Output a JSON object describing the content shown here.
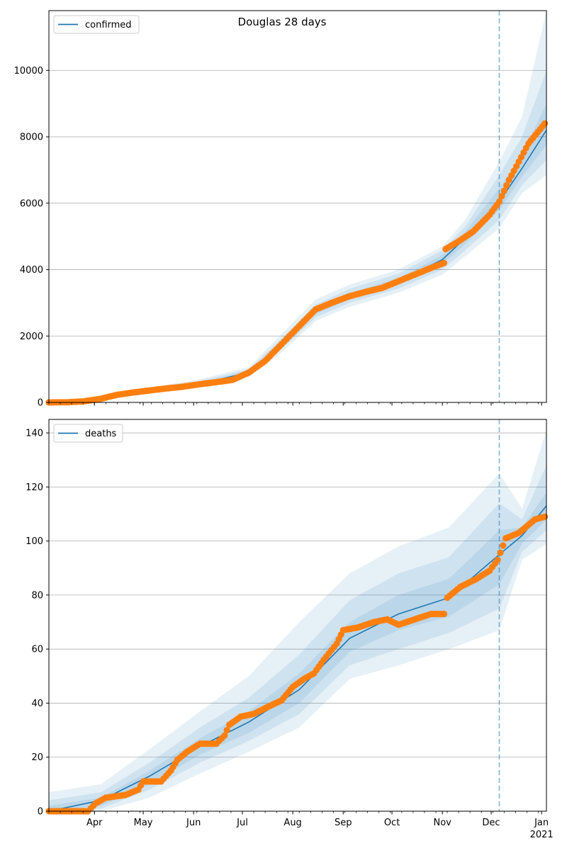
{
  "title": "Douglas 28 days",
  "colors": {
    "model": "#1f77b4",
    "observed": "#ff7f0e",
    "band": "#1f77b4",
    "grid": "#b0b0b0"
  },
  "x_axis": {
    "months": [
      "Apr",
      "May",
      "Jun",
      "Jul",
      "Aug",
      "Sep",
      "Oct",
      "Nov",
      "Dec",
      "Jan"
    ],
    "year_label": "2021",
    "range": [
      "2020-03-04",
      "2021-01-04"
    ],
    "forecast_date": "2020-12-06"
  },
  "chart_data": [
    {
      "type": "line",
      "legend": "confirmed",
      "legend_position": "top-left",
      "grid": "horizontal",
      "ylim": [
        0,
        11800
      ],
      "yticks": [
        0,
        2000,
        4000,
        6000,
        8000,
        10000
      ],
      "observed_points": [
        [
          "2020-03-04",
          0
        ],
        [
          "2020-03-15",
          5
        ],
        [
          "2020-03-25",
          30
        ],
        [
          "2020-04-05",
          110
        ],
        [
          "2020-04-15",
          230
        ],
        [
          "2020-04-25",
          300
        ],
        [
          "2020-05-05",
          360
        ],
        [
          "2020-05-15",
          420
        ],
        [
          "2020-05-25",
          470
        ],
        [
          "2020-06-05",
          550
        ],
        [
          "2020-06-15",
          610
        ],
        [
          "2020-06-25",
          680
        ],
        [
          "2020-07-05",
          900
        ],
        [
          "2020-07-15",
          1250
        ],
        [
          "2020-07-25",
          1750
        ],
        [
          "2020-08-05",
          2300
        ],
        [
          "2020-08-15",
          2800
        ],
        [
          "2020-08-25",
          3000
        ],
        [
          "2020-09-05",
          3200
        ],
        [
          "2020-09-15",
          3330
        ],
        [
          "2020-09-25",
          3450
        ],
        [
          "2020-10-05",
          3650
        ],
        [
          "2020-10-15",
          3850
        ],
        [
          "2020-10-25",
          4050
        ],
        [
          "2020-11-02",
          4200
        ],
        [
          "2020-11-03",
          4620
        ],
        [
          "2020-11-10",
          4820
        ],
        [
          "2020-11-20",
          5150
        ],
        [
          "2020-11-30",
          5650
        ],
        [
          "2020-12-06",
          6050
        ],
        [
          "2020-12-12",
          6700
        ],
        [
          "2020-12-18",
          7250
        ],
        [
          "2020-12-24",
          7800
        ],
        [
          "2021-01-03",
          8400
        ]
      ],
      "model_line": [
        [
          "2020-03-04",
          0
        ],
        [
          "2020-04-05",
          100
        ],
        [
          "2020-05-05",
          350
        ],
        [
          "2020-06-05",
          560
        ],
        [
          "2020-07-05",
          900
        ],
        [
          "2020-07-25",
          1750
        ],
        [
          "2020-08-15",
          2750
        ],
        [
          "2020-09-05",
          3200
        ],
        [
          "2020-10-05",
          3650
        ],
        [
          "2020-11-01",
          4300
        ],
        [
          "2020-11-15",
          4950
        ],
        [
          "2020-12-06",
          6050
        ],
        [
          "2020-12-20",
          7050
        ],
        [
          "2021-01-04",
          8200
        ]
      ],
      "bands": [
        {
          "x": [
            "2020-03-04",
            "2020-04-05",
            "2020-05-05",
            "2020-06-05",
            "2020-07-05",
            "2020-07-25",
            "2020-08-15",
            "2020-09-05",
            "2020-10-05",
            "2020-11-01",
            "2020-11-15",
            "2020-12-06",
            "2020-12-20",
            "2021-01-04"
          ],
          "lo": [
            0,
            60,
            260,
            440,
            760,
            1500,
            2450,
            2880,
            3300,
            3850,
            4400,
            5250,
            6300,
            6850
          ],
          "hi": [
            40,
            150,
            450,
            700,
            1060,
            2050,
            3100,
            3550,
            4000,
            4700,
            5500,
            7250,
            8600,
            11800
          ]
        },
        {
          "x": [
            "2020-03-04",
            "2020-04-05",
            "2020-05-05",
            "2020-06-05",
            "2020-07-05",
            "2020-07-25",
            "2020-08-15",
            "2020-09-05",
            "2020-10-05",
            "2020-11-01",
            "2020-11-15",
            "2020-12-06",
            "2020-12-20",
            "2021-01-04"
          ],
          "lo": [
            0,
            75,
            290,
            480,
            810,
            1600,
            2560,
            3000,
            3430,
            4000,
            4580,
            5500,
            6550,
            7300
          ],
          "hi": [
            25,
            130,
            410,
            650,
            1000,
            1920,
            2950,
            3420,
            3880,
            4580,
            5300,
            6850,
            8000,
            10000
          ]
        },
        {
          "x": [
            "2020-03-04",
            "2020-04-05",
            "2020-05-05",
            "2020-06-05",
            "2020-07-05",
            "2020-07-25",
            "2020-08-15",
            "2020-09-05",
            "2020-10-05",
            "2020-11-01",
            "2020-11-15",
            "2020-12-06",
            "2020-12-20",
            "2021-01-04"
          ],
          "lo": [
            0,
            88,
            320,
            520,
            855,
            1680,
            2660,
            3110,
            3550,
            4160,
            4770,
            5800,
            6800,
            7750
          ],
          "hi": [
            12,
            112,
            380,
            600,
            945,
            1820,
            2840,
            3290,
            3750,
            4440,
            5130,
            6450,
            7450,
            9000
          ]
        }
      ]
    },
    {
      "type": "line",
      "legend": "deaths",
      "legend_position": "top-left",
      "grid": "horizontal",
      "ylim": [
        0,
        145
      ],
      "yticks": [
        0,
        20,
        40,
        60,
        80,
        100,
        120,
        140
      ],
      "observed_points": [
        [
          "2020-03-04",
          0
        ],
        [
          "2020-03-15",
          0
        ],
        [
          "2020-03-28",
          0
        ],
        [
          "2020-04-02",
          3
        ],
        [
          "2020-04-08",
          5
        ],
        [
          "2020-04-20",
          6
        ],
        [
          "2020-04-28",
          8
        ],
        [
          "2020-05-01",
          11
        ],
        [
          "2020-05-12",
          11
        ],
        [
          "2020-05-18",
          15
        ],
        [
          "2020-05-22",
          19
        ],
        [
          "2020-05-28",
          22
        ],
        [
          "2020-06-05",
          25
        ],
        [
          "2020-06-15",
          25
        ],
        [
          "2020-06-20",
          28
        ],
        [
          "2020-06-23",
          32
        ],
        [
          "2020-06-30",
          35
        ],
        [
          "2020-07-08",
          36
        ],
        [
          "2020-07-18",
          39
        ],
        [
          "2020-07-25",
          41
        ],
        [
          "2020-08-01",
          46
        ],
        [
          "2020-08-08",
          49
        ],
        [
          "2020-08-14",
          51
        ],
        [
          "2020-08-20",
          56
        ],
        [
          "2020-08-28",
          62
        ],
        [
          "2020-09-01",
          67
        ],
        [
          "2020-09-10",
          68
        ],
        [
          "2020-09-20",
          70
        ],
        [
          "2020-09-28",
          71
        ],
        [
          "2020-10-05",
          69
        ],
        [
          "2020-10-15",
          71
        ],
        [
          "2020-10-25",
          73
        ],
        [
          "2020-11-02",
          73
        ],
        [
          "2020-11-04",
          79
        ],
        [
          "2020-11-12",
          83
        ],
        [
          "2020-11-22",
          86
        ],
        [
          "2020-11-30",
          89
        ],
        [
          "2020-12-05",
          93
        ],
        [
          "2020-12-10",
          101
        ],
        [
          "2020-12-18",
          103
        ],
        [
          "2020-12-22",
          105
        ],
        [
          "2020-12-28",
          108
        ],
        [
          "2021-01-03",
          109
        ]
      ],
      "model_line": [
        [
          "2020-03-04",
          0
        ],
        [
          "2020-04-05",
          4
        ],
        [
          "2020-05-05",
          13
        ],
        [
          "2020-06-05",
          24
        ],
        [
          "2020-07-05",
          33
        ],
        [
          "2020-08-05",
          45
        ],
        [
          "2020-09-05",
          64
        ],
        [
          "2020-10-05",
          73
        ],
        [
          "2020-11-05",
          79
        ],
        [
          "2020-12-06",
          95
        ],
        [
          "2020-12-20",
          102
        ],
        [
          "2021-01-04",
          113
        ]
      ],
      "bands": [
        {
          "x": [
            "2020-03-04",
            "2020-04-05",
            "2020-05-05",
            "2020-06-05",
            "2020-07-05",
            "2020-08-05",
            "2020-09-05",
            "2020-10-05",
            "2020-11-05",
            "2020-12-06",
            "2020-12-20",
            "2021-01-04"
          ],
          "lo": [
            0,
            0,
            5,
            14,
            22,
            31,
            49,
            54,
            60,
            67,
            93,
            99
          ],
          "hi": [
            7,
            10,
            23,
            37,
            50,
            70,
            88,
            98,
            105,
            125,
            112,
            141
          ]
        },
        {
          "x": [
            "2020-03-04",
            "2020-04-05",
            "2020-05-05",
            "2020-06-05",
            "2020-07-05",
            "2020-08-05",
            "2020-09-05",
            "2020-10-05",
            "2020-11-05",
            "2020-12-06",
            "2020-12-20",
            "2021-01-04"
          ],
          "lo": [
            0,
            1,
            8,
            18,
            26,
            36,
            54,
            60,
            66,
            75,
            96,
            104
          ],
          "hi": [
            4,
            7,
            18,
            31,
            42,
            58,
            78,
            88,
            94,
            114,
            108,
            128
          ]
        },
        {
          "x": [
            "2020-03-04",
            "2020-04-05",
            "2020-05-05",
            "2020-06-05",
            "2020-07-05",
            "2020-08-05",
            "2020-09-05",
            "2020-10-05",
            "2020-11-05",
            "2020-12-06",
            "2020-12-20",
            "2021-01-04"
          ],
          "lo": [
            0,
            2,
            10,
            21,
            29,
            40,
            59,
            67,
            72,
            84,
            99,
            108
          ],
          "hi": [
            2,
            5,
            15,
            27,
            37,
            51,
            70,
            80,
            86,
            104,
            105,
            118
          ]
        }
      ]
    }
  ]
}
